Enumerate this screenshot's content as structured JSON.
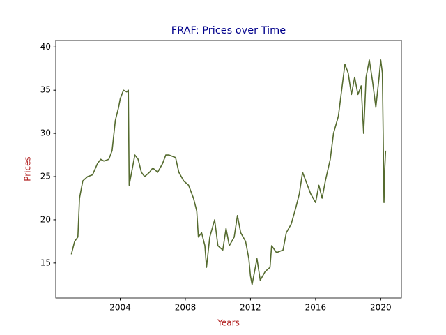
{
  "chart_data": {
    "type": "line",
    "title": "FRAF: Prices over Time",
    "xlabel": "Years",
    "ylabel": "Prices",
    "x": [
      2001.0,
      2001.2,
      2001.4,
      2001.5,
      2001.7,
      2002.0,
      2002.3,
      2002.6,
      2002.8,
      2003.0,
      2003.3,
      2003.5,
      2003.7,
      2003.9,
      2004.0,
      2004.2,
      2004.4,
      2004.5,
      2004.55,
      2004.7,
      2004.9,
      2005.1,
      2005.3,
      2005.5,
      2005.8,
      2006.0,
      2006.3,
      2006.6,
      2006.8,
      2007.0,
      2007.4,
      2007.6,
      2007.9,
      2008.2,
      2008.5,
      2008.7,
      2008.8,
      2009.0,
      2009.2,
      2009.3,
      2009.5,
      2009.8,
      2010.0,
      2010.3,
      2010.5,
      2010.7,
      2011.0,
      2011.2,
      2011.4,
      2011.7,
      2011.9,
      2012.0,
      2012.1,
      2012.4,
      2012.6,
      2012.9,
      2013.2,
      2013.3,
      2013.6,
      2014.0,
      2014.2,
      2014.5,
      2014.8,
      2015.0,
      2015.2,
      2015.5,
      2015.7,
      2016.0,
      2016.2,
      2016.4,
      2016.6,
      2016.9,
      2017.1,
      2017.4,
      2017.6,
      2017.8,
      2018.0,
      2018.2,
      2018.4,
      2018.6,
      2018.8,
      2018.95,
      2019.1,
      2019.3,
      2019.5,
      2019.7,
      2019.9,
      2020.0,
      2020.1,
      2020.15,
      2020.2,
      2020.25,
      2020.3
    ],
    "series": [
      {
        "name": "FRAF",
        "color": "#556b2f",
        "values": [
          16.0,
          17.5,
          18,
          22.5,
          24.5,
          25,
          25.2,
          26.5,
          27,
          26.8,
          27,
          28,
          31.5,
          33,
          34,
          35,
          34.8,
          35,
          24,
          25.5,
          27.5,
          27,
          25.5,
          25,
          25.5,
          26,
          25.5,
          26.5,
          27.5,
          27.5,
          27.2,
          25.5,
          24.5,
          24,
          22.5,
          21,
          18,
          18.5,
          17,
          14.5,
          18,
          20,
          17,
          16.5,
          19,
          17,
          18,
          20.5,
          18.5,
          17.5,
          15.5,
          13.5,
          12.5,
          15.5,
          13,
          14,
          14.5,
          17,
          16.2,
          16.5,
          18.5,
          19.5,
          21.5,
          23,
          25.5,
          24,
          23,
          22,
          24,
          22.5,
          24.5,
          27,
          30,
          32,
          35,
          38,
          37,
          34.5,
          36.5,
          34.5,
          35.5,
          30,
          36.5,
          38.5,
          36,
          33,
          36.5,
          38.5,
          37,
          30,
          22,
          26,
          28
        ]
      }
    ],
    "xlim": [
      2000.04,
      2021.27
    ],
    "xticks": [
      2004,
      2008,
      2012,
      2016,
      2020
    ],
    "ylim": [
      10.95,
      40.75
    ],
    "yticks": [
      15,
      20,
      25,
      30,
      35,
      40
    ],
    "title_color": "#00008b",
    "label_color": "#b22222"
  }
}
